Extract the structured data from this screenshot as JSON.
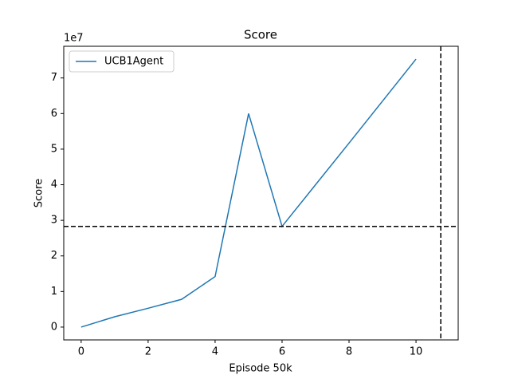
{
  "chart_data": {
    "type": "line",
    "title": "Score",
    "x_label": "Episode 50k",
    "y_label": "Score",
    "y_offset_label": "1e7",
    "x": [
      0,
      1,
      2,
      3,
      4,
      5,
      6,
      7,
      8,
      9,
      10
    ],
    "series": [
      {
        "name": "UCB1Agent",
        "color": "#1f77b4",
        "values": [
          0,
          0.29,
          0.53,
          0.78,
          1.42,
          6.0,
          2.83,
          4.0,
          5.17,
          6.35,
          7.53
        ]
      }
    ],
    "hline": 2.83,
    "vline": 10.74,
    "xlim": [
      -0.52,
      11.26
    ],
    "ylim": [
      -0.36,
      7.89
    ],
    "xticks": [
      0,
      2,
      4,
      6,
      8,
      10
    ],
    "yticks": [
      0,
      1,
      2,
      3,
      4,
      5,
      6,
      7
    ],
    "legend": "upper left",
    "grid": false
  }
}
